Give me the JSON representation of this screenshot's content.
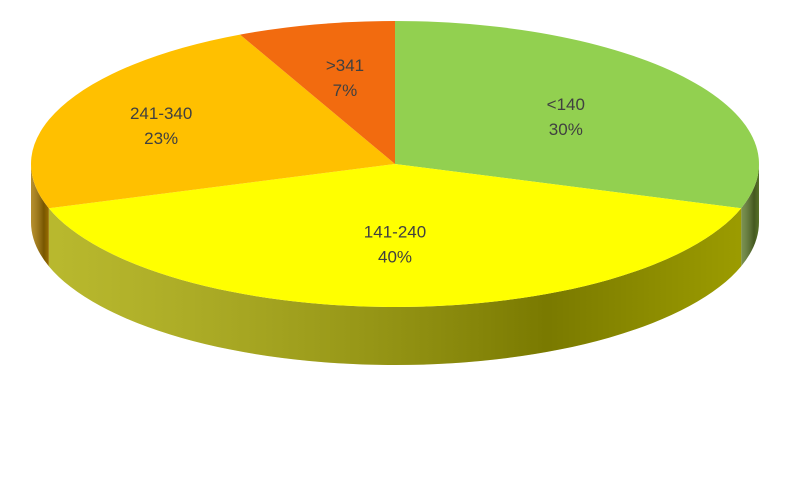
{
  "chart_data": {
    "type": "pie",
    "title": "",
    "categories": [
      "<140",
      "141-240",
      "241-340",
      ">341"
    ],
    "values": [
      30,
      40,
      23,
      7
    ],
    "labels": [
      {
        "category": "<140",
        "percent": "30%"
      },
      {
        "category": "141-240",
        "percent": "40%"
      },
      {
        "category": "241-340",
        "percent": "23%"
      },
      {
        "category": ">341",
        "percent": "7%"
      }
    ],
    "colors": [
      "#92d050",
      "#ffff00",
      "#ffc000",
      "#f26b0f"
    ],
    "side_colors": [
      "#5f7b2c",
      "#a9a900",
      "#a67700",
      "#9b3c07"
    ],
    "legend": "none",
    "style": "3d"
  }
}
